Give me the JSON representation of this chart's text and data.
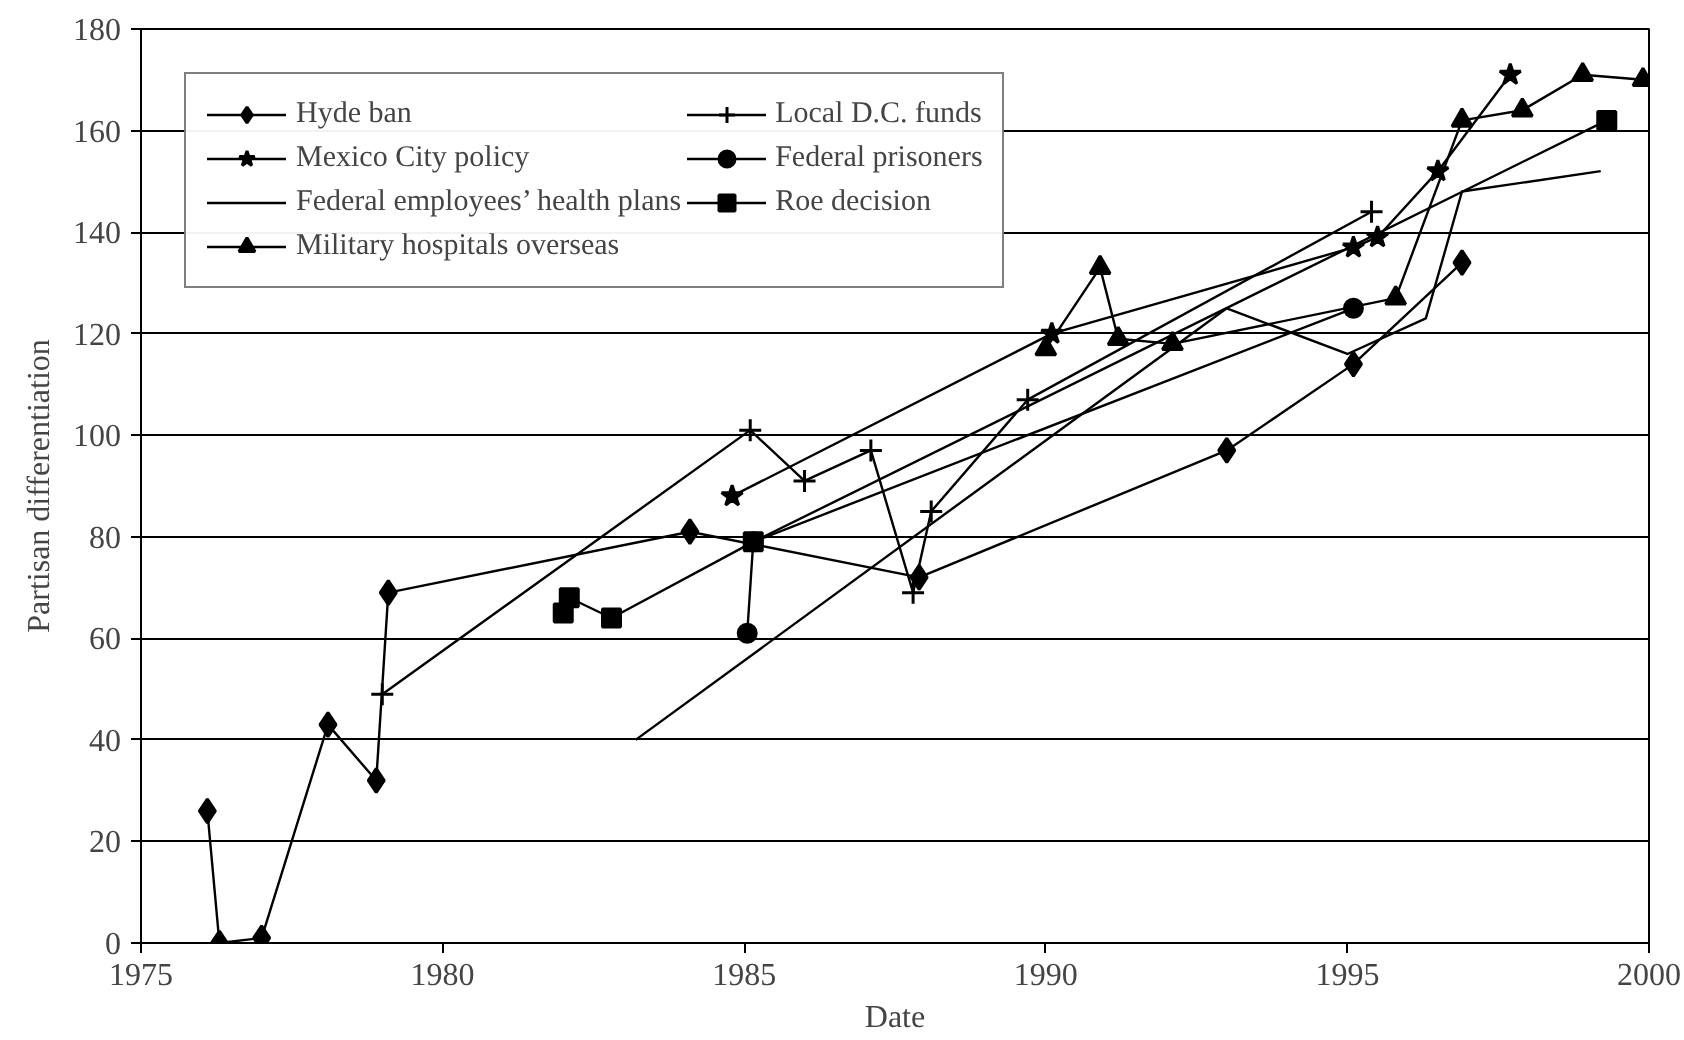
{
  "chart_data": {
    "type": "line",
    "xlabel": "Date",
    "ylabel": "Partisan differentiation",
    "xlim": [
      1975,
      2000
    ],
    "xticks": [
      1975,
      1980,
      1985,
      1990,
      1995,
      2000
    ],
    "ylim": [
      0,
      180
    ],
    "yticks": [
      0,
      20,
      40,
      60,
      80,
      100,
      120,
      140,
      160,
      180
    ],
    "grid": "y",
    "legend": "top left",
    "line_style": "solid",
    "series": [
      {
        "name": "Hyde ban",
        "color": "#000000",
        "marker": "diamond",
        "x": [
          1976.1,
          1976.3,
          1977.0,
          1978.1,
          1978.9,
          1979.1,
          1984.1,
          1987.9,
          1993.0,
          1995.1,
          1996.9
        ],
        "values": [
          26,
          0,
          1,
          43,
          32,
          69,
          81,
          72,
          97,
          114,
          134
        ]
      },
      {
        "name": "Local D.C. funds",
        "color": "#000000",
        "marker": "cross",
        "x": [
          1979.0,
          1985.1,
          1986.0,
          1987.1,
          1987.8,
          1988.1,
          1989.7,
          1995.4
        ],
        "values": [
          49,
          101,
          91,
          97,
          69,
          85,
          107,
          144
        ]
      },
      {
        "name": "Mexico City policy",
        "color": "#000000",
        "marker": "star",
        "x": [
          1984.8,
          1990.1,
          1995.1,
          1995.5,
          1996.5,
          1997.7
        ],
        "values": [
          88,
          120,
          137,
          139,
          152,
          171
        ]
      },
      {
        "name": "Federal prisoners",
        "color": "#000000",
        "marker": "circle",
        "x": [
          1985.05,
          1985.15,
          1995.1
        ],
        "values": [
          61,
          79,
          125
        ]
      },
      {
        "name": "Federal employees’ health plans",
        "color": "#000000",
        "marker": "none",
        "x": [
          1983.2,
          1993.0,
          1995.0,
          1996.3,
          1996.9,
          1999.2
        ],
        "values": [
          40,
          125,
          116,
          123,
          148,
          152
        ]
      },
      {
        "name": "Roe decision",
        "color": "#000000",
        "marker": "square",
        "x": [
          1982.0,
          1982.1,
          1982.8,
          1985.15,
          1999.3
        ],
        "values": [
          65,
          68,
          64,
          79,
          162
        ]
      },
      {
        "name": "Military hospitals overseas",
        "color": "#000000",
        "marker": "triangle",
        "x": [
          1990.0,
          1990.9,
          1991.2,
          1992.1,
          1995.8,
          1996.9,
          1997.9,
          1998.9,
          1999.9
        ],
        "values": [
          117,
          133,
          119,
          118,
          127,
          162,
          164,
          171,
          170
        ]
      }
    ]
  }
}
